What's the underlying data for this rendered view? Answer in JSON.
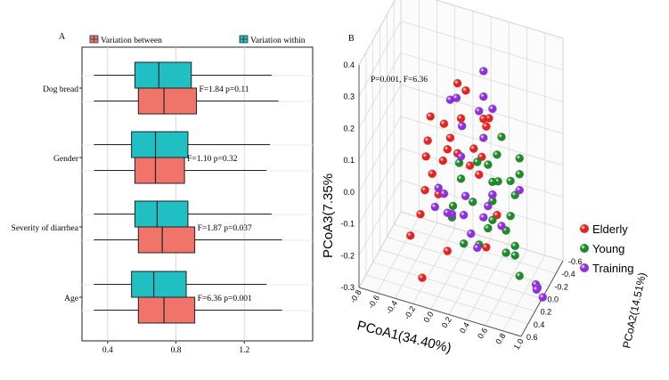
{
  "chart_data": [
    {
      "panel_label": "A",
      "type": "boxplot",
      "orientation": "horizontal",
      "legend": {
        "placement": "top",
        "items": [
          {
            "label": "Variation between",
            "color": "#f0746a"
          },
          {
            "label": "Variation within",
            "color": "#1fbfc4"
          }
        ]
      },
      "xlim": [
        0.25,
        1.6
      ],
      "xticks": [
        "0.4",
        "0.8",
        "1.2"
      ],
      "tick_values": [
        0.4,
        0.8,
        1.2
      ],
      "grid": true,
      "groups": [
        {
          "category": "Dog bread",
          "stat": "F=1.84 p=0.11",
          "within": {
            "min": 0.32,
            "q1": 0.56,
            "median": 0.7,
            "q3": 0.89,
            "max": 1.36
          },
          "between": {
            "min": 0.32,
            "q1": 0.58,
            "median": 0.73,
            "q3": 0.92,
            "max": 1.4
          }
        },
        {
          "category": "Gender",
          "stat": "F=1.10 p=0.32",
          "within": {
            "min": 0.32,
            "q1": 0.54,
            "median": 0.68,
            "q3": 0.87,
            "max": 1.35
          },
          "between": {
            "min": 0.32,
            "q1": 0.56,
            "median": 0.68,
            "q3": 0.85,
            "max": 1.33
          }
        },
        {
          "category": "Severity of diarrhea",
          "stat": "F=1.87 p=0.037",
          "within": {
            "min": 0.32,
            "q1": 0.56,
            "median": 0.69,
            "q3": 0.87,
            "max": 1.36
          },
          "between": {
            "min": 0.32,
            "q1": 0.58,
            "median": 0.72,
            "q3": 0.91,
            "max": 1.42
          }
        },
        {
          "category": "Age",
          "stat": "F=6.36 p=0.001",
          "within": {
            "min": 0.32,
            "q1": 0.54,
            "median": 0.67,
            "q3": 0.86,
            "max": 1.33
          },
          "between": {
            "min": 0.32,
            "q1": 0.58,
            "median": 0.73,
            "q3": 0.91,
            "max": 1.42
          }
        }
      ]
    },
    {
      "panel_label": "B",
      "type": "scatter3d",
      "annotation": "P=0.001, F=6.36",
      "xlabel": "PCoA1(34.40%)",
      "ylabel": "PCoA2(14.51%)",
      "zlabel": "PCoA3(7.35%",
      "xlim": [
        -0.8,
        1.0
      ],
      "ylim": [
        -0.6,
        0.6
      ],
      "zlim": [
        -0.3,
        0.4
      ],
      "xticks": [
        "-0.8",
        "-0.6",
        "-0.4",
        "-0.2",
        "0.0",
        "0.2",
        "0.4",
        "0.6",
        "0.8",
        "1.0"
      ],
      "yticks": [
        "-0.6",
        "-0.4",
        "-0.2",
        "0.0",
        "0.2",
        "0.4",
        "0.6"
      ],
      "zticks": [
        "-0.3",
        "-0.2",
        "-0.1",
        "0.0",
        "0.1",
        "0.2",
        "0.3",
        "0.4"
      ],
      "legend": {
        "placement": "right",
        "items": [
          {
            "label": "Elderly",
            "color": "#e8231f"
          },
          {
            "label": "Young",
            "color": "#1f8a2a"
          },
          {
            "label": "Training",
            "color": "#8f2fe0"
          }
        ]
      },
      "series": [
        {
          "name": "Elderly",
          "points": [
            [
              0.1,
              0.1,
              0.32
            ],
            [
              0.2,
              0.12,
              0.31
            ],
            [
              0.1,
              0.0,
              0.19
            ],
            [
              -0.2,
              0.1,
              0.19
            ],
            [
              0.45,
              0.1,
              0.24
            ],
            [
              0.35,
              0.0,
              0.21
            ],
            [
              0.4,
              0.05,
              0.2
            ],
            [
              -0.05,
              0.1,
              0.18
            ],
            [
              0.28,
              0.1,
              0.13
            ],
            [
              0.0,
              0.05,
              0.13
            ],
            [
              0.1,
              0.1,
              0.1
            ],
            [
              -0.25,
              0.05,
              0.1
            ],
            [
              -0.05,
              0.0,
              0.08
            ],
            [
              0.35,
              0.05,
              0.1
            ],
            [
              0.3,
              0.0,
              0.03
            ],
            [
              -0.25,
              0.1,
              0.06
            ],
            [
              -0.1,
              0.0,
              0.04
            ],
            [
              0.2,
              0.0,
              0.05
            ],
            [
              -0.2,
              0.05,
              0.0
            ],
            [
              0.45,
              0.0,
              -0.02
            ],
            [
              -0.3,
              0.0,
              -0.07
            ],
            [
              -0.15,
              0.0,
              -0.07
            ],
            [
              0.5,
              0.0,
              -0.08
            ],
            [
              -0.35,
              0.0,
              -0.15
            ],
            [
              0.4,
              0.05,
              -0.18
            ],
            [
              -0.5,
              -0.1,
              -0.25
            ],
            [
              -0.05,
              0.0,
              -0.24
            ],
            [
              -0.35,
              -0.05,
              -0.36
            ]
          ]
        },
        {
          "name": "Young",
          "points": [
            [
              0.55,
              0.0,
              0.17
            ],
            [
              0.75,
              0.0,
              0.12
            ],
            [
              0.5,
              0.0,
              0.11
            ],
            [
              0.3,
              0.05,
              0.08
            ],
            [
              0.1,
              0.05,
              0.06
            ],
            [
              0.4,
              0.0,
              0.07
            ],
            [
              0.55,
              0.1,
              0.05
            ],
            [
              0.75,
              0.0,
              0.07
            ],
            [
              0.65,
              0.0,
              0.04
            ],
            [
              0.45,
              0.0,
              0.02
            ],
            [
              0.1,
              0.0,
              0.0
            ],
            [
              0.7,
              0.0,
              0.0
            ],
            [
              0.45,
              0.0,
              -0.04
            ],
            [
              0.25,
              0.05,
              -0.05
            ],
            [
              0.65,
              0.0,
              -0.07
            ],
            [
              0.05,
              0.1,
              -0.07
            ],
            [
              0.45,
              0.0,
              -0.1
            ],
            [
              0.6,
              0.0,
              -0.12
            ],
            [
              0.0,
              0.0,
              -0.13
            ],
            [
              0.4,
              0.0,
              -0.13
            ],
            [
              0.7,
              0.0,
              -0.16
            ],
            [
              0.3,
              0.0,
              -0.19
            ],
            [
              0.6,
              0.0,
              -0.19
            ],
            [
              0.7,
              0.0,
              -0.19
            ],
            [
              0.75,
              0.0,
              -0.25
            ],
            [
              0.15,
              0.05,
              -0.19
            ]
          ]
        },
        {
          "name": "Training",
          "points": [
            [
              0.35,
              0.0,
              0.36
            ],
            [
              0.35,
              0.0,
              0.28
            ],
            [
              0.0,
              0.05,
              0.25
            ],
            [
              0.05,
              0.0,
              0.25
            ],
            [
              0.45,
              0.0,
              0.25
            ],
            [
              0.3,
              0.0,
              0.23
            ],
            [
              0.15,
              0.1,
              0.19
            ],
            [
              0.35,
              0.0,
              0.15
            ],
            [
              0.1,
              0.0,
              0.07
            ],
            [
              0.75,
              0.0,
              0.02
            ],
            [
              0.45,
              0.0,
              -0.02
            ],
            [
              -0.05,
              0.1,
              -0.04
            ],
            [
              0.15,
              0.0,
              -0.05
            ],
            [
              -0.15,
              0.0,
              -0.05
            ],
            [
              0.4,
              0.0,
              -0.06
            ],
            [
              -0.15,
              0.1,
              -0.09
            ],
            [
              0.15,
              0.05,
              -0.1
            ],
            [
              0.35,
              0.0,
              -0.1
            ],
            [
              0.55,
              0.0,
              -0.11
            ],
            [
              0.0,
              0.0,
              -0.12
            ],
            [
              0.25,
              0.1,
              -0.14
            ],
            [
              0.3,
              0.05,
              -0.19
            ],
            [
              0.95,
              0.05,
              -0.25
            ],
            [
              0.95,
              0.0,
              -0.27
            ],
            [
              0.9,
              -0.1,
              -0.3
            ],
            [
              0.95,
              -0.15,
              -0.33
            ],
            [
              -0.05,
              0.0,
              -0.12
            ]
          ]
        }
      ]
    }
  ]
}
